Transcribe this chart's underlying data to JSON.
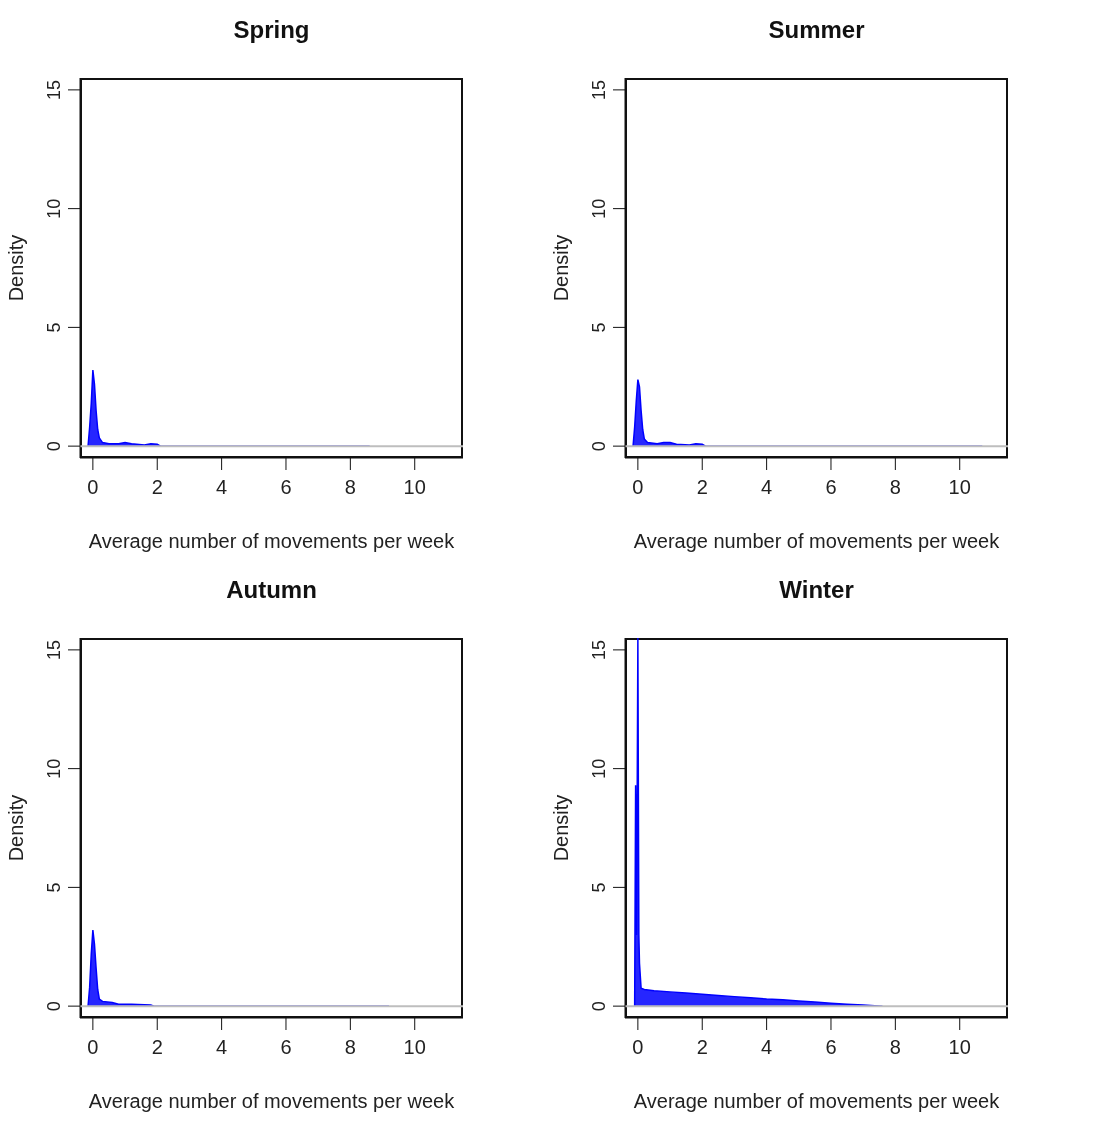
{
  "chart_data": [
    {
      "type": "area",
      "title": "Spring",
      "xlabel": "Average number of movements per week",
      "ylabel": "Density",
      "xlim": [
        -0.4,
        11.5
      ],
      "ylim": [
        -0.5,
        15.5
      ],
      "xticks": [
        0,
        2,
        4,
        6,
        8,
        10
      ],
      "yticks": [
        0,
        5,
        10,
        15
      ],
      "ref_lines": [
        {
          "axis": "y",
          "value": 0,
          "color": "#bebebe"
        }
      ],
      "series": [
        {
          "color": "#0000ff",
          "x": [
            -0.15,
            -0.1,
            -0.05,
            0,
            0.05,
            0.1,
            0.15,
            0.2,
            0.3,
            0.5,
            0.8,
            1.0,
            1.2,
            1.6,
            1.8,
            2.0,
            2.1,
            8.6
          ],
          "values": [
            0,
            0.8,
            1.8,
            3.2,
            2.6,
            1.5,
            0.7,
            0.35,
            0.15,
            0.1,
            0.1,
            0.15,
            0.1,
            0.05,
            0.1,
            0.08,
            0,
            0
          ]
        }
      ]
    },
    {
      "type": "area",
      "title": "Summer",
      "xlabel": "Average number of movements per week",
      "ylabel": "Density",
      "xlim": [
        -0.4,
        11.5
      ],
      "ylim": [
        -0.5,
        15.5
      ],
      "xticks": [
        0,
        2,
        4,
        6,
        8,
        10
      ],
      "yticks": [
        0,
        5,
        10,
        15
      ],
      "ref_lines": [
        {
          "axis": "y",
          "value": 0,
          "color": "#bebebe"
        }
      ],
      "series": [
        {
          "color": "#0000ff",
          "x": [
            -0.15,
            -0.1,
            -0.05,
            0,
            0.05,
            0.1,
            0.15,
            0.2,
            0.3,
            0.6,
            0.8,
            1.0,
            1.2,
            1.6,
            1.8,
            2.0,
            2.1,
            10.7
          ],
          "values": [
            0,
            0.8,
            1.9,
            2.8,
            2.5,
            1.5,
            0.7,
            0.3,
            0.15,
            0.1,
            0.15,
            0.15,
            0.08,
            0.05,
            0.1,
            0.08,
            0,
            0
          ]
        }
      ]
    },
    {
      "type": "area",
      "title": "Autumn",
      "xlabel": "Average number of movements per week",
      "ylabel": "Density",
      "xlim": [
        -0.4,
        11.5
      ],
      "ylim": [
        -0.5,
        15.5
      ],
      "xticks": [
        0,
        2,
        4,
        6,
        8,
        10
      ],
      "yticks": [
        0,
        5,
        10,
        15
      ],
      "ref_lines": [
        {
          "axis": "y",
          "value": 0,
          "color": "#bebebe"
        }
      ],
      "series": [
        {
          "color": "#0000ff",
          "x": [
            -0.15,
            -0.1,
            -0.05,
            0,
            0.05,
            0.1,
            0.15,
            0.2,
            0.3,
            0.6,
            0.8,
            1.2,
            1.8,
            1.9,
            9.2
          ],
          "values": [
            0,
            0.8,
            2.2,
            3.2,
            2.6,
            1.6,
            0.7,
            0.3,
            0.2,
            0.15,
            0.08,
            0.08,
            0.05,
            0,
            0
          ]
        }
      ]
    },
    {
      "type": "area",
      "title": "Winter",
      "xlabel": "Average number of movements per week",
      "ylabel": "Density",
      "xlim": [
        -0.4,
        11.5
      ],
      "ylim": [
        -0.5,
        15.5
      ],
      "xticks": [
        0,
        2,
        4,
        6,
        8,
        10
      ],
      "yticks": [
        0,
        5,
        10,
        15
      ],
      "ref_lines": [
        {
          "axis": "y",
          "value": 0,
          "color": "#bebebe"
        }
      ],
      "series": [
        {
          "color": "#0000ff",
          "x": [
            -0.1,
            -0.07,
            -0.04,
            0,
            0.03,
            0.05,
            0.1,
            0.2,
            0.5,
            1.0,
            1.5,
            2.0,
            2.5,
            3.0,
            3.5,
            4.0,
            4.5,
            5.0,
            5.5,
            6.0,
            6.5,
            7.0,
            7.6
          ],
          "values": [
            0,
            9.3,
            3,
            15.5,
            3,
            1.8,
            0.75,
            0.7,
            0.65,
            0.6,
            0.55,
            0.5,
            0.45,
            0.4,
            0.35,
            0.3,
            0.27,
            0.22,
            0.17,
            0.12,
            0.08,
            0.05,
            0
          ]
        }
      ]
    }
  ]
}
